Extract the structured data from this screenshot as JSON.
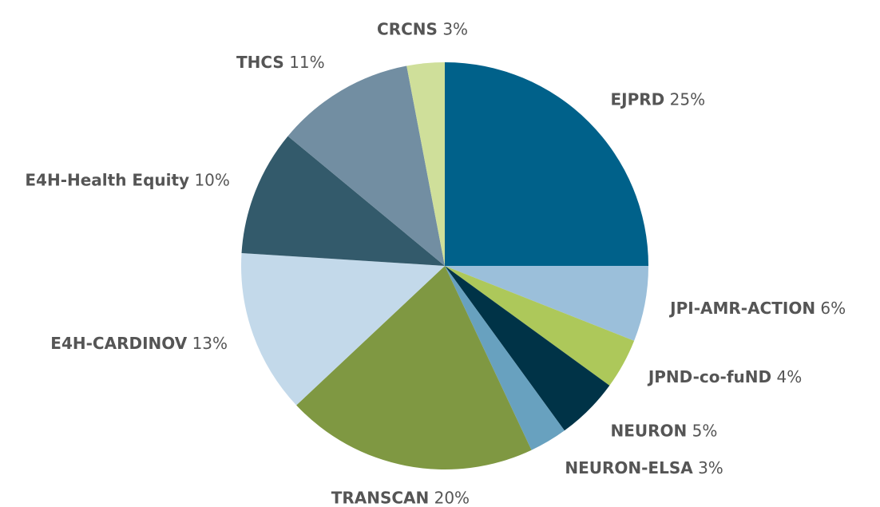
{
  "chart_data": {
    "type": "pie",
    "categories": [
      "EJPRD",
      "JPI-AMR-ACTION",
      "JPND-co-fuND",
      "NEURON",
      "NEURON-ELSA",
      "TRANSCAN",
      "E4H-CARDINOV",
      "E4H-Health Equity",
      "THCS",
      "CRCNS"
    ],
    "values": [
      25,
      6,
      4,
      5,
      3,
      20,
      13,
      10,
      11,
      3
    ],
    "value_labels": [
      "25%",
      "6%",
      "4%",
      "5%",
      "3%",
      "20%",
      "13%",
      "10%",
      "11%",
      "3%"
    ],
    "colors": [
      "#00618a",
      "#9bbfda",
      "#adc85a",
      "#003347",
      "#68a1bf",
      "#7f9842",
      "#c3d9ea",
      "#335a6b",
      "#728ea2",
      "#cfdf9a"
    ]
  }
}
